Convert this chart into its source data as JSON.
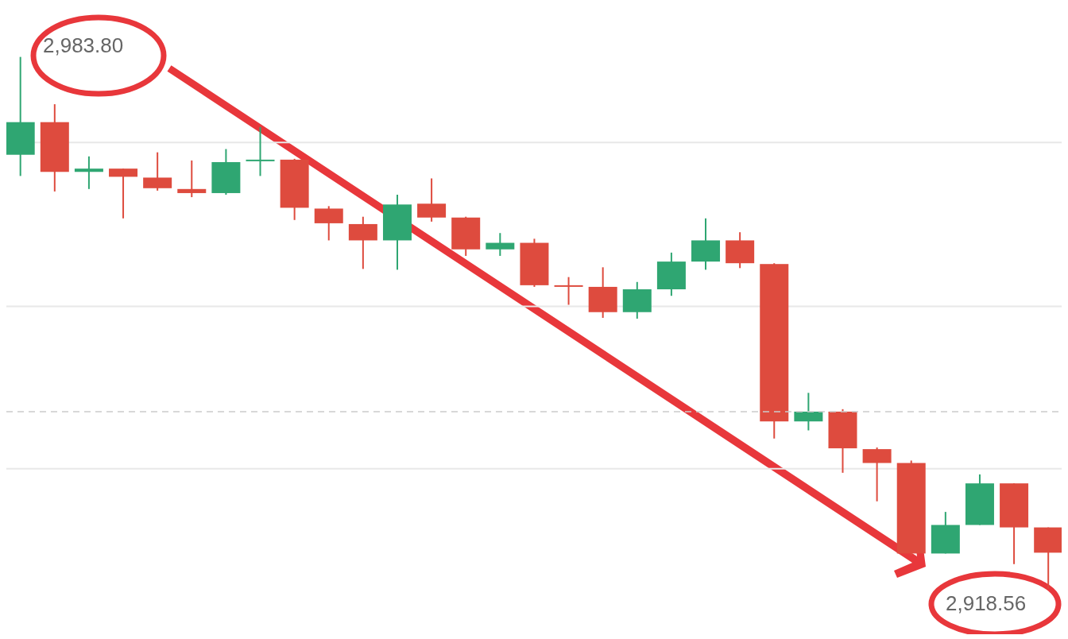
{
  "chart_data": {
    "type": "candlestick",
    "categories": [
      null,
      null,
      null,
      null,
      null,
      null,
      null,
      null,
      null,
      null,
      null,
      null,
      null,
      null,
      null,
      null,
      null,
      null,
      null,
      null,
      null,
      null,
      null,
      null,
      null,
      null,
      null,
      null,
      null,
      null,
      null
    ],
    "ohlc": [
      [
        2971.8,
        2983.8,
        2969.2,
        2975.8
      ],
      [
        2975.8,
        2978.0,
        2967.3,
        2969.7
      ],
      [
        2969.7,
        2971.6,
        2967.6,
        2970.1
      ],
      [
        2970.1,
        2970.1,
        2964.0,
        2969.1
      ],
      [
        2969.0,
        2972.1,
        2967.4,
        2967.7
      ],
      [
        2967.6,
        2971.1,
        2966.6,
        2967.1
      ],
      [
        2967.1,
        2972.5,
        2966.9,
        2970.9
      ],
      [
        2971.1,
        2975.2,
        2969.2,
        2971.2
      ],
      [
        2971.2,
        2971.3,
        2963.8,
        2965.3
      ],
      [
        2965.2,
        2965.5,
        2961.3,
        2963.4
      ],
      [
        2963.3,
        2964.2,
        2957.8,
        2961.3
      ],
      [
        2961.3,
        2966.9,
        2957.7,
        2965.7
      ],
      [
        2965.8,
        2968.9,
        2963.6,
        2964.1
      ],
      [
        2964.1,
        2964.2,
        2959.4,
        2960.2
      ],
      [
        2960.2,
        2962.2,
        2959.4,
        2961.0
      ],
      [
        2961.0,
        2961.5,
        2955.6,
        2955.8
      ],
      [
        2955.8,
        2956.8,
        2953.4,
        2955.7
      ],
      [
        2955.6,
        2958.0,
        2951.8,
        2952.5
      ],
      [
        2952.5,
        2956.2,
        2951.7,
        2955.3
      ],
      [
        2955.3,
        2959.8,
        2954.5,
        2958.7
      ],
      [
        2958.7,
        2964.0,
        2957.7,
        2961.3
      ],
      [
        2961.3,
        2962.3,
        2957.9,
        2958.5
      ],
      [
        2958.4,
        2958.5,
        2937.0,
        2939.1
      ],
      [
        2939.1,
        2942.6,
        2938.0,
        2940.3
      ],
      [
        2940.3,
        2940.6,
        2932.8,
        2935.8
      ],
      [
        2935.7,
        2935.9,
        2929.3,
        2934.0
      ],
      [
        2934.0,
        2934.3,
        2922.7,
        2922.9
      ],
      [
        2922.9,
        2928.0,
        2922.9,
        2926.4
      ],
      [
        2926.4,
        2932.6,
        2926.4,
        2931.5
      ],
      [
        2931.5,
        2931.5,
        2921.6,
        2926.1
      ],
      [
        2926.1,
        2926.1,
        2918.56,
        2923.0
      ]
    ],
    "colors": [
      "#2fa672",
      "#de4b3e",
      "#2fa672",
      "#de4b3e",
      "#de4b3e",
      "#de4b3e",
      "#2fa672",
      "#2fa672",
      "#de4b3e",
      "#de4b3e",
      "#de4b3e",
      "#2fa672",
      "#de4b3e",
      "#de4b3e",
      "#2fa672",
      "#de4b3e",
      "#de4b3e",
      "#de4b3e",
      "#2fa672",
      "#2fa672",
      "#2fa672",
      "#de4b3e",
      "#de4b3e",
      "#2fa672",
      "#de4b3e",
      "#de4b3e",
      "#de4b3e",
      "#2fa672",
      "#2fa672",
      "#de4b3e",
      "#de4b3e"
    ],
    "ylim": [
      2913,
      2990
    ],
    "yticks": [
      {
        "value": 2973.3,
        "label": null
      },
      {
        "value": 2953.2,
        "label": null
      },
      {
        "value": 2933.3,
        "label": null
      }
    ],
    "grid": "y",
    "tick_labels": false,
    "ref_lines": [
      {
        "axis": "y",
        "value": 2940.3,
        "color": "#cccccc",
        "line_style": "dashed"
      }
    ],
    "annotations": [
      "2,983.80",
      "2,918.56"
    ]
  }
}
